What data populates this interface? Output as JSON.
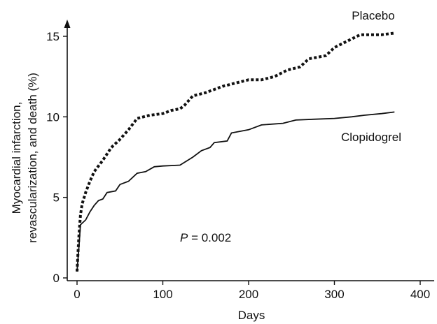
{
  "chart_data": {
    "type": "line",
    "title": "",
    "xlabel": "Days",
    "ylabel_lines": [
      "Myocardial infarction,",
      "revascularization, and death (%)"
    ],
    "xlim": [
      -10,
      415
    ],
    "ylim": [
      0,
      16.3
    ],
    "x_ticks": [
      0,
      100,
      200,
      300,
      400
    ],
    "y_ticks": [
      0,
      5,
      10,
      15
    ],
    "x_tick_labels": [
      "0",
      "100",
      "200",
      "300",
      "400"
    ],
    "y_tick_labels": [
      "0",
      "5",
      "10",
      "15"
    ],
    "grid": false,
    "legend": "none (series labeled directly on plot)",
    "annotation": {
      "italic": "P",
      "text": " = 0.002"
    },
    "series": [
      {
        "name": "Placebo",
        "style": "dotted",
        "color": "#111111",
        "points": [
          [
            0,
            0.4
          ],
          [
            2,
            2.5
          ],
          [
            4,
            3.9
          ],
          [
            6,
            4.6
          ],
          [
            10,
            5.3
          ],
          [
            15,
            6.0
          ],
          [
            20,
            6.6
          ],
          [
            30,
            7.3
          ],
          [
            40,
            8.1
          ],
          [
            50,
            8.6
          ],
          [
            60,
            9.2
          ],
          [
            70,
            9.9
          ],
          [
            85,
            10.1
          ],
          [
            100,
            10.2
          ],
          [
            110,
            10.4
          ],
          [
            120,
            10.5
          ],
          [
            125,
            10.7
          ],
          [
            135,
            11.3
          ],
          [
            150,
            11.5
          ],
          [
            160,
            11.7
          ],
          [
            170,
            11.9
          ],
          [
            185,
            12.1
          ],
          [
            200,
            12.3
          ],
          [
            215,
            12.3
          ],
          [
            230,
            12.5
          ],
          [
            245,
            12.9
          ],
          [
            260,
            13.1
          ],
          [
            270,
            13.6
          ],
          [
            290,
            13.8
          ],
          [
            300,
            14.3
          ],
          [
            315,
            14.7
          ],
          [
            330,
            15.1
          ],
          [
            355,
            15.1
          ],
          [
            370,
            15.2
          ]
        ]
      },
      {
        "name": "Clopidogrel",
        "style": "solid",
        "color": "#111111",
        "points": [
          [
            0,
            0.4
          ],
          [
            2,
            1.8
          ],
          [
            4,
            3.3
          ],
          [
            10,
            3.6
          ],
          [
            15,
            4.1
          ],
          [
            20,
            4.5
          ],
          [
            25,
            4.8
          ],
          [
            30,
            4.9
          ],
          [
            35,
            5.3
          ],
          [
            45,
            5.4
          ],
          [
            50,
            5.8
          ],
          [
            60,
            6.0
          ],
          [
            70,
            6.5
          ],
          [
            80,
            6.6
          ],
          [
            90,
            6.9
          ],
          [
            100,
            6.95
          ],
          [
            120,
            7.0
          ],
          [
            135,
            7.5
          ],
          [
            145,
            7.9
          ],
          [
            155,
            8.1
          ],
          [
            160,
            8.4
          ],
          [
            175,
            8.5
          ],
          [
            180,
            9.0
          ],
          [
            200,
            9.2
          ],
          [
            215,
            9.5
          ],
          [
            240,
            9.6
          ],
          [
            255,
            9.8
          ],
          [
            275,
            9.85
          ],
          [
            300,
            9.9
          ],
          [
            320,
            10.0
          ],
          [
            335,
            10.1
          ],
          [
            355,
            10.2
          ],
          [
            370,
            10.3
          ]
        ]
      }
    ]
  }
}
